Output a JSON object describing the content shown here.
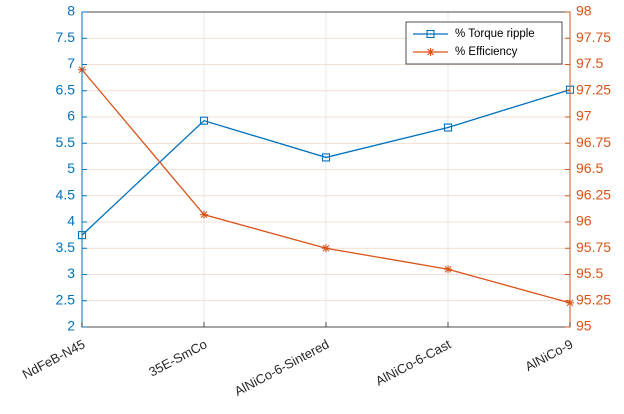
{
  "chart_data": {
    "type": "line",
    "categories": [
      "NdFeB-N45",
      "35E-SmCo",
      "AlNiCo-6-Sintered",
      "AlNiCo-6-Cast",
      "AlNiCo-9"
    ],
    "series": [
      {
        "name": "% Torque ripple",
        "axis": "left",
        "color": "#0072BD",
        "marker": "square",
        "values": [
          3.75,
          5.93,
          5.23,
          5.8,
          6.52
        ]
      },
      {
        "name": "% Efficiency",
        "axis": "right",
        "color": "#D95319",
        "marker": "asterisk",
        "values": [
          97.45,
          96.07,
          95.75,
          95.55,
          95.23
        ]
      }
    ],
    "y_left": {
      "lim": [
        2,
        8
      ],
      "ticks": [
        2,
        2.5,
        3,
        3.5,
        4,
        4.5,
        5,
        5.5,
        6,
        6.5,
        7,
        7.5,
        8
      ],
      "tick_labels": [
        "2",
        "2.5",
        "3",
        "3.5",
        "4",
        "4.5",
        "5",
        "5.5",
        "6",
        "6.5",
        "7",
        "7.5",
        "8"
      ],
      "color": "#0072BD"
    },
    "y_right": {
      "lim": [
        95,
        98
      ],
      "ticks": [
        95,
        95.25,
        95.5,
        95.75,
        96,
        96.25,
        96.5,
        96.75,
        97,
        97.25,
        97.5,
        97.75,
        98
      ],
      "tick_labels": [
        "95",
        "95.25",
        "95.5",
        "95.75",
        "96",
        "96.25",
        "96.5",
        "96.75",
        "97",
        "97.25",
        "97.5",
        "97.75",
        "98"
      ],
      "color": "#D95319"
    },
    "grid": true,
    "legend": "top-right"
  }
}
